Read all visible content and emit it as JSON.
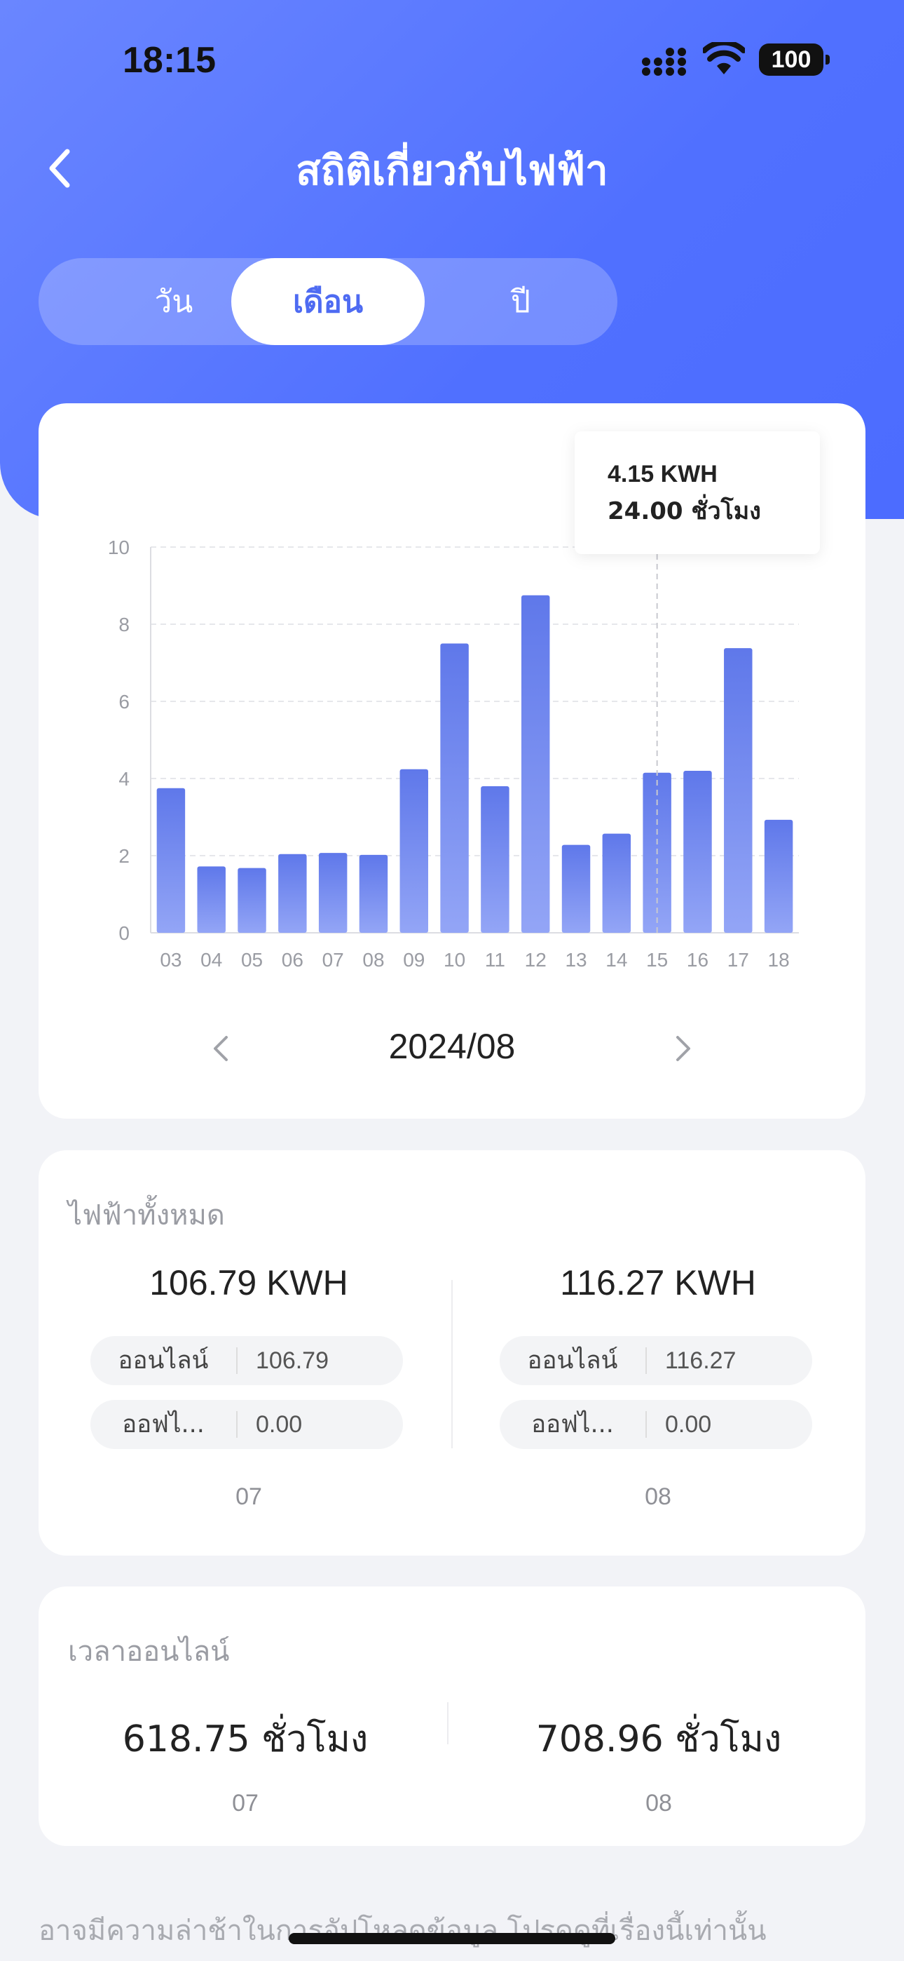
{
  "status_bar": {
    "time": "18:15",
    "battery": "100"
  },
  "header": {
    "title": "สถิติเกี่ยวกับไฟฟ้า"
  },
  "tabs": [
    {
      "label": "วัน",
      "active": false
    },
    {
      "label": "เดือน",
      "active": true
    },
    {
      "label": "ปี",
      "active": false
    }
  ],
  "tooltip": {
    "energy": "4.15 KWH",
    "duration": "24.00 ชั่วโมง"
  },
  "chart_data": {
    "type": "bar",
    "categories": [
      "03",
      "04",
      "05",
      "06",
      "07",
      "08",
      "09",
      "10",
      "11",
      "12",
      "13",
      "14",
      "15",
      "16",
      "17",
      "18"
    ],
    "values": [
      3.75,
      1.72,
      1.68,
      2.04,
      2.07,
      2.02,
      4.24,
      7.5,
      3.8,
      8.75,
      2.28,
      2.57,
      4.15,
      4.2,
      7.38,
      2.93
    ],
    "ylim": [
      0,
      10
    ],
    "yticks": [
      "0",
      "2",
      "4",
      "6",
      "8",
      "10"
    ],
    "grid": true,
    "highlight_category": "15",
    "bar_color_top": "#5f78ea",
    "bar_color_bottom": "#93a5f6"
  },
  "period": {
    "label": "2024/08"
  },
  "total_power": {
    "title": "ไฟฟ้าทั้งหมด",
    "columns": [
      {
        "value": "106.79 KWH",
        "online_label": "ออนไลน์",
        "online_value": "106.79",
        "offline_label": "ออฟไ...",
        "offline_value": "0.00",
        "month": "07"
      },
      {
        "value": "116.27 KWH",
        "online_label": "ออนไลน์",
        "online_value": "116.27",
        "offline_label": "ออฟไ...",
        "offline_value": "0.00",
        "month": "08"
      }
    ]
  },
  "online_time": {
    "title": "เวลาออนไลน์",
    "columns": [
      {
        "value": "618.75 ชั่วโมง",
        "month": "07"
      },
      {
        "value": "708.96 ชั่วโมง",
        "month": "08"
      }
    ]
  },
  "footnote": "อาจมีความล่าช้าในการอัปโหลดข้อมูล โปรดดูที่เรื่องนี้เท่านั้น",
  "colors": {
    "accent": "#5070ff",
    "tab_active_text": "#4e6bf2"
  }
}
